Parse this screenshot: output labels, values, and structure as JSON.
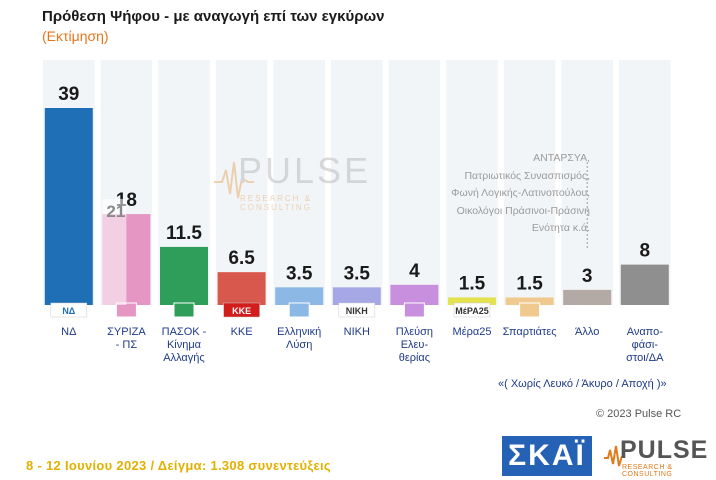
{
  "header": {
    "title": "Πρόθεση Ψήφου - με αναγωγή επί των εγκύρων",
    "subtitle": "(Εκτίμηση)"
  },
  "watermark": {
    "brand": "PULSE",
    "tagline": "RESEARCH & CONSULTING"
  },
  "other_note_lines": [
    "ΑΝΤΑΡΣΥΑ,",
    "Πατριωτικός Συνασπισμός,",
    "Φωνή Λογικής-Λατινοπούλου,",
    "Οικολόγοι Πράσινοι-Πράσινη",
    "Ενότητα κ.ά."
  ],
  "footnote": "«( Χωρίς Λευκό / Άκυρο / Αποχή )»",
  "copyright": "© 2023 Pulse RC",
  "bottom_line": "8 - 12 Ιουνίου 2023 / Δείγμα: 1.308 συνεντεύξεις",
  "logos": {
    "skai": "ΣΚΑΪ",
    "pulse": "PULSE",
    "pulse_tagline": "RESEARCH & CONSULTING"
  },
  "chart_data": {
    "type": "bar",
    "title": "Πρόθεση Ψήφου - με αναγωγή επί των εγκύρων",
    "subtitle": "(Εκτίμηση)",
    "ylim": [
      0,
      50
    ],
    "categories": [
      [
        "ΝΔ"
      ],
      [
        "ΣΥΡΙΖΑ",
        "- ΠΣ"
      ],
      [
        "ΠΑΣΟΚ -",
        "Κίνημα",
        "Αλλαγής"
      ],
      [
        "ΚΚΕ"
      ],
      [
        "Ελληνική",
        "Λύση"
      ],
      [
        "ΝΙΚΗ"
      ],
      [
        "Πλεύση",
        "Ελευ-",
        "θερίας"
      ],
      [
        "Μέρα25"
      ],
      [
        "Σπαρτιάτες"
      ],
      [
        "Άλλο"
      ],
      [
        "Αναπο-",
        "φάσι-",
        "στοι/ΔΑ"
      ]
    ],
    "values": [
      39,
      18,
      11.5,
      6.5,
      3.5,
      3.5,
      4,
      1.5,
      1.5,
      3,
      8
    ],
    "value_labels": [
      "39",
      "18",
      "11.5",
      "6.5",
      "3.5",
      "3.5",
      "4",
      "1.5",
      "1.5",
      "3",
      "8"
    ],
    "annotations": [
      {
        "category_index": 1,
        "value": 21,
        "label": "21"
      }
    ],
    "colors": [
      "#1f6fb6",
      "#e596c3",
      "#2f9e5a",
      "#d8584e",
      "#8bb8e4",
      "#a6a8e6",
      "#c98fdf",
      "#e4e24d",
      "#f0c98e",
      "#b3aaa6",
      "#8f8f8f"
    ],
    "logo_labels": [
      "ΝΔ",
      "",
      "",
      "ΚΚΕ",
      "",
      "ΝΙΚΗ",
      "",
      "ΜέΡΑ25",
      "",
      "",
      ""
    ],
    "grid": false,
    "legend": "none"
  }
}
